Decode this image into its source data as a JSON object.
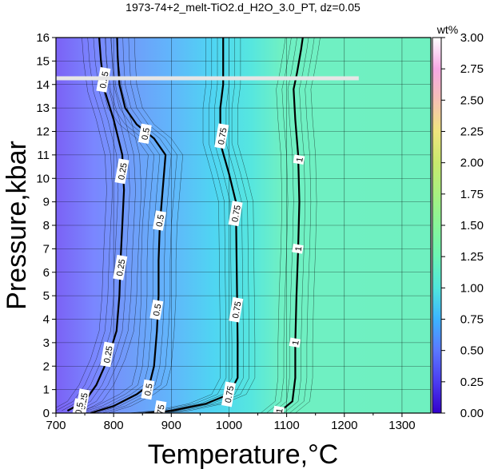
{
  "chart_data": {
    "type": "heatmap",
    "title": "1973-74+2_melt-TiO2.d_H2O_3.0_PT, dz=0.05",
    "xlabel": "Temperature,°C",
    "ylabel": "Pressure,kbar",
    "xlim": [
      700,
      1350
    ],
    "ylim": [
      0,
      16
    ],
    "x_ticks": [
      "700",
      "800",
      "900",
      "1000",
      "1100",
      "1200",
      "1300"
    ],
    "y_ticks": [
      "0",
      "1",
      "2",
      "3",
      "4",
      "5",
      "6",
      "7",
      "8",
      "9",
      "10",
      "11",
      "12",
      "13",
      "14",
      "15",
      "16"
    ],
    "grid": true,
    "colorbar": {
      "title": "wt%",
      "range": [
        0,
        3
      ],
      "ticks": [
        "0.00",
        "0.25",
        "0.50",
        "0.75",
        "1.00",
        "1.25",
        "1.50",
        "1.75",
        "2.00",
        "2.25",
        "2.50",
        "2.75",
        "3.00"
      ],
      "colors": [
        "#3300cc",
        "#4b3cf0",
        "#5a78ff",
        "#3cb4ff",
        "#50e6dc",
        "#6cf5b4",
        "#88f59a",
        "#a8f080",
        "#c8e86e",
        "#f0e47e",
        "#f6c0b4",
        "#f6a8e4",
        "#ffffff"
      ]
    },
    "contours": [
      {
        "label": "0.25",
        "points": [
          [
            720,
            0.1
          ],
          [
            750,
            0.5
          ],
          [
            770,
            1.2
          ],
          [
            790,
            2.3
          ],
          [
            805,
            3.5
          ],
          [
            810,
            5
          ],
          [
            812,
            6.5
          ],
          [
            815,
            8
          ],
          [
            818,
            9.5
          ],
          [
            815,
            11
          ],
          [
            800,
            12.5
          ],
          [
            785,
            13.7
          ],
          [
            778,
            15
          ],
          [
            775,
            16
          ]
        ]
      },
      {
        "label": "0.5",
        "points": [
          [
            760,
            0
          ],
          [
            800,
            0.3
          ],
          [
            840,
            0.8
          ],
          [
            862,
            1.2
          ],
          [
            870,
            2
          ],
          [
            875,
            3.5
          ],
          [
            878,
            5
          ],
          [
            878,
            6.5
          ],
          [
            880,
            8
          ],
          [
            885,
            9.5
          ],
          [
            890,
            11
          ],
          [
            870,
            11.7
          ],
          [
            840,
            12.3
          ],
          [
            820,
            13
          ],
          [
            810,
            14
          ],
          [
            807,
            15.2
          ],
          [
            806,
            16
          ]
        ]
      },
      {
        "label": "0.75",
        "points": [
          [
            855,
            0
          ],
          [
            900,
            0.1
          ],
          [
            960,
            0.4
          ],
          [
            1000,
            0.8
          ],
          [
            1015,
            1.5
          ],
          [
            1015,
            3
          ],
          [
            1014,
            5
          ],
          [
            1013,
            7
          ],
          [
            1012,
            9
          ],
          [
            1000,
            10.2
          ],
          [
            985,
            11.5
          ],
          [
            985,
            13
          ],
          [
            990,
            14
          ],
          [
            990,
            16
          ]
        ]
      },
      {
        "label": "1",
        "points": [
          [
            1085,
            0
          ],
          [
            1110,
            0.5
          ],
          [
            1115,
            1.5
          ],
          [
            1115,
            3
          ],
          [
            1117,
            5
          ],
          [
            1120,
            7
          ],
          [
            1122,
            9
          ],
          [
            1120,
            11
          ],
          [
            1115,
            12.5
          ],
          [
            1112,
            13.8
          ],
          [
            1118,
            14.5
          ],
          [
            1125,
            15.5
          ],
          [
            1128,
            16
          ]
        ]
      }
    ],
    "contour_label_positions": [
      {
        "text": "0.25",
        "x": 747,
        "y": 0.5
      },
      {
        "text": "0.25",
        "x": 790,
        "y": 2.5
      },
      {
        "text": "0.25",
        "x": 812,
        "y": 6.2
      },
      {
        "text": "0.25",
        "x": 815,
        "y": 10.3
      },
      {
        "text": "0.25",
        "x": 783,
        "y": 14.2
      },
      {
        "text": "0.5",
        "x": 740,
        "y": 0.2
      },
      {
        "text": "0.5",
        "x": 860,
        "y": 1
      },
      {
        "text": "0.5",
        "x": 875,
        "y": 4.4
      },
      {
        "text": "0.5",
        "x": 880,
        "y": 8.2
      },
      {
        "text": "0.5",
        "x": 855,
        "y": 11.9
      },
      {
        "text": "0.75",
        "x": 880,
        "y": 0
      },
      {
        "text": "0.75",
        "x": 1000,
        "y": 0.8
      },
      {
        "text": "0.75",
        "x": 1013,
        "y": 4.4
      },
      {
        "text": "0.75",
        "x": 1012,
        "y": 8.5
      },
      {
        "text": "0.75",
        "x": 988,
        "y": 11.8
      },
      {
        "text": "1",
        "x": 1087,
        "y": 0.1
      },
      {
        "text": "1",
        "x": 1115,
        "y": 3
      },
      {
        "text": "1",
        "x": 1120,
        "y": 7
      },
      {
        "text": "1",
        "x": 1122,
        "y": 10.8
      }
    ]
  }
}
